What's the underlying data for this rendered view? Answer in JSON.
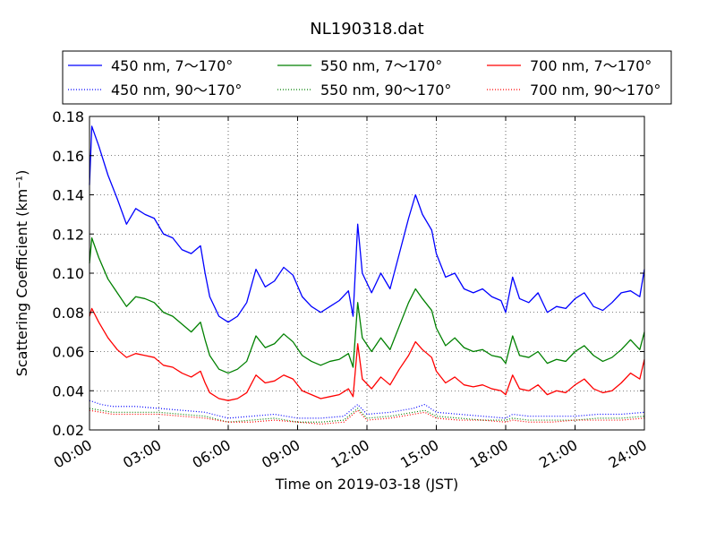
{
  "chart_data": {
    "type": "line",
    "title": "NL190318.dat",
    "xlabel": "Time on 2019-03-18 (JST)",
    "ylabel": "Scattering Coefficient (km⁻¹)",
    "xlim": [
      0,
      24
    ],
    "ylim": [
      0.02,
      0.18
    ],
    "x_ticks": [
      0,
      3,
      6,
      9,
      12,
      15,
      18,
      21,
      24
    ],
    "x_tick_labels": [
      "00:00",
      "03:00",
      "06:00",
      "09:00",
      "12:00",
      "15:00",
      "18:00",
      "21:00",
      "24:00"
    ],
    "y_ticks": [
      0.02,
      0.04,
      0.06,
      0.08,
      0.1,
      0.12,
      0.14,
      0.16,
      0.18
    ],
    "y_tick_labels": [
      "0.02",
      "0.04",
      "0.06",
      "0.08",
      "0.10",
      "0.12",
      "0.14",
      "0.16",
      "0.18"
    ],
    "grid": true,
    "legend": "top (above plot, 3 columns)",
    "series": [
      {
        "name": "450 nm, 7～170°",
        "color": "#0000ff",
        "style": "solid",
        "x": [
          0,
          0.1,
          0.4,
          0.8,
          1.2,
          1.6,
          2.0,
          2.4,
          2.8,
          3.2,
          3.6,
          4.0,
          4.4,
          4.8,
          5.0,
          5.2,
          5.6,
          6.0,
          6.4,
          6.8,
          7.2,
          7.6,
          8.0,
          8.4,
          8.8,
          9.2,
          9.6,
          10.0,
          10.4,
          10.8,
          11.2,
          11.4,
          11.6,
          11.8,
          12.2,
          12.6,
          13.0,
          13.4,
          13.8,
          14.1,
          14.4,
          14.8,
          15.0,
          15.4,
          15.8,
          16.2,
          16.6,
          17.0,
          17.4,
          17.8,
          18.0,
          18.3,
          18.6,
          19.0,
          19.4,
          19.8,
          20.2,
          20.6,
          21.0,
          21.4,
          21.8,
          22.2,
          22.6,
          23.0,
          23.4,
          23.8,
          24.0
        ],
        "y": [
          0.145,
          0.175,
          0.165,
          0.15,
          0.138,
          0.125,
          0.133,
          0.13,
          0.128,
          0.12,
          0.118,
          0.112,
          0.11,
          0.114,
          0.1,
          0.088,
          0.078,
          0.075,
          0.078,
          0.085,
          0.102,
          0.093,
          0.096,
          0.103,
          0.099,
          0.088,
          0.083,
          0.08,
          0.083,
          0.086,
          0.091,
          0.078,
          0.125,
          0.1,
          0.09,
          0.1,
          0.092,
          0.11,
          0.128,
          0.14,
          0.13,
          0.122,
          0.11,
          0.098,
          0.1,
          0.092,
          0.09,
          0.092,
          0.088,
          0.086,
          0.08,
          0.098,
          0.087,
          0.085,
          0.09,
          0.08,
          0.083,
          0.082,
          0.087,
          0.09,
          0.083,
          0.081,
          0.085,
          0.09,
          0.091,
          0.088,
          0.102
        ]
      },
      {
        "name": "550 nm, 7～170°",
        "color": "#008000",
        "style": "solid",
        "x": [
          0,
          0.1,
          0.4,
          0.8,
          1.2,
          1.6,
          2.0,
          2.4,
          2.8,
          3.2,
          3.6,
          4.0,
          4.4,
          4.8,
          5.0,
          5.2,
          5.6,
          6.0,
          6.4,
          6.8,
          7.2,
          7.6,
          8.0,
          8.4,
          8.8,
          9.2,
          9.6,
          10.0,
          10.4,
          10.8,
          11.2,
          11.4,
          11.6,
          11.8,
          12.2,
          12.6,
          13.0,
          13.4,
          13.8,
          14.1,
          14.4,
          14.8,
          15.0,
          15.4,
          15.8,
          16.2,
          16.6,
          17.0,
          17.4,
          17.8,
          18.0,
          18.3,
          18.6,
          19.0,
          19.4,
          19.8,
          20.2,
          20.6,
          21.0,
          21.4,
          21.8,
          22.2,
          22.6,
          23.0,
          23.4,
          23.8,
          24.0
        ],
        "y": [
          0.105,
          0.118,
          0.108,
          0.097,
          0.09,
          0.083,
          0.088,
          0.087,
          0.085,
          0.08,
          0.078,
          0.074,
          0.07,
          0.075,
          0.066,
          0.058,
          0.051,
          0.049,
          0.051,
          0.055,
          0.068,
          0.062,
          0.064,
          0.069,
          0.065,
          0.058,
          0.055,
          0.053,
          0.055,
          0.056,
          0.059,
          0.052,
          0.085,
          0.067,
          0.06,
          0.067,
          0.061,
          0.073,
          0.085,
          0.092,
          0.087,
          0.081,
          0.072,
          0.063,
          0.067,
          0.062,
          0.06,
          0.061,
          0.058,
          0.057,
          0.054,
          0.068,
          0.058,
          0.057,
          0.06,
          0.054,
          0.056,
          0.055,
          0.06,
          0.063,
          0.058,
          0.055,
          0.057,
          0.061,
          0.066,
          0.061,
          0.07
        ]
      },
      {
        "name": "700 nm, 7～170°",
        "color": "#ff0000",
        "style": "solid",
        "x": [
          0,
          0.1,
          0.4,
          0.8,
          1.2,
          1.6,
          2.0,
          2.4,
          2.8,
          3.2,
          3.6,
          4.0,
          4.4,
          4.8,
          5.0,
          5.2,
          5.6,
          6.0,
          6.4,
          6.8,
          7.2,
          7.6,
          8.0,
          8.4,
          8.8,
          9.2,
          9.6,
          10.0,
          10.4,
          10.8,
          11.2,
          11.4,
          11.6,
          11.8,
          12.2,
          12.6,
          13.0,
          13.4,
          13.8,
          14.1,
          14.4,
          14.8,
          15.0,
          15.4,
          15.8,
          16.2,
          16.6,
          17.0,
          17.4,
          17.8,
          18.0,
          18.3,
          18.6,
          19.0,
          19.4,
          19.8,
          20.2,
          20.6,
          21.0,
          21.4,
          21.8,
          22.2,
          22.6,
          23.0,
          23.4,
          23.8,
          24.0
        ],
        "y": [
          0.078,
          0.082,
          0.075,
          0.067,
          0.061,
          0.057,
          0.059,
          0.058,
          0.057,
          0.053,
          0.052,
          0.049,
          0.047,
          0.05,
          0.044,
          0.039,
          0.036,
          0.035,
          0.036,
          0.039,
          0.048,
          0.044,
          0.045,
          0.048,
          0.046,
          0.04,
          0.038,
          0.036,
          0.037,
          0.038,
          0.041,
          0.037,
          0.064,
          0.046,
          0.041,
          0.047,
          0.043,
          0.051,
          0.058,
          0.065,
          0.061,
          0.057,
          0.05,
          0.044,
          0.047,
          0.043,
          0.042,
          0.043,
          0.041,
          0.04,
          0.038,
          0.048,
          0.041,
          0.04,
          0.043,
          0.038,
          0.04,
          0.039,
          0.043,
          0.046,
          0.041,
          0.039,
          0.04,
          0.044,
          0.049,
          0.046,
          0.056
        ]
      },
      {
        "name": "450 nm, 90～170°",
        "color": "#0000ff",
        "style": "dotted",
        "x": [
          0,
          0.5,
          1,
          2,
          3,
          4,
          5,
          6,
          7,
          8,
          9,
          10,
          11,
          11.6,
          12,
          13,
          14,
          14.5,
          15,
          16,
          17,
          18,
          18.3,
          19,
          20,
          21,
          22,
          23,
          24
        ],
        "y": [
          0.035,
          0.033,
          0.032,
          0.032,
          0.031,
          0.03,
          0.029,
          0.026,
          0.027,
          0.028,
          0.026,
          0.026,
          0.027,
          0.033,
          0.028,
          0.029,
          0.031,
          0.033,
          0.029,
          0.028,
          0.027,
          0.026,
          0.028,
          0.027,
          0.027,
          0.027,
          0.028,
          0.028,
          0.029
        ]
      },
      {
        "name": "550 nm, 90～170°",
        "color": "#008000",
        "style": "dotted",
        "x": [
          0,
          0.5,
          1,
          2,
          3,
          4,
          5,
          6,
          7,
          8,
          9,
          10,
          11,
          11.6,
          12,
          13,
          14,
          14.5,
          15,
          16,
          17,
          18,
          18.3,
          19,
          20,
          21,
          22,
          23,
          24
        ],
        "y": [
          0.031,
          0.03,
          0.029,
          0.029,
          0.029,
          0.028,
          0.027,
          0.024,
          0.025,
          0.026,
          0.024,
          0.024,
          0.025,
          0.031,
          0.026,
          0.027,
          0.029,
          0.03,
          0.027,
          0.026,
          0.025,
          0.025,
          0.026,
          0.025,
          0.025,
          0.025,
          0.026,
          0.026,
          0.027
        ]
      },
      {
        "name": "700 nm, 90～170°",
        "color": "#ff0000",
        "style": "dotted",
        "x": [
          0,
          0.5,
          1,
          2,
          3,
          4,
          5,
          6,
          7,
          8,
          9,
          10,
          11,
          11.6,
          12,
          13,
          14,
          14.5,
          15,
          16,
          17,
          18,
          18.3,
          19,
          20,
          21,
          22,
          23,
          24
        ],
        "y": [
          0.03,
          0.029,
          0.028,
          0.028,
          0.028,
          0.027,
          0.026,
          0.024,
          0.024,
          0.025,
          0.024,
          0.023,
          0.024,
          0.03,
          0.025,
          0.026,
          0.028,
          0.029,
          0.026,
          0.025,
          0.025,
          0.024,
          0.025,
          0.024,
          0.024,
          0.025,
          0.025,
          0.025,
          0.026
        ]
      }
    ],
    "legend_order": [
      0,
      3,
      1,
      4,
      2,
      5
    ]
  }
}
